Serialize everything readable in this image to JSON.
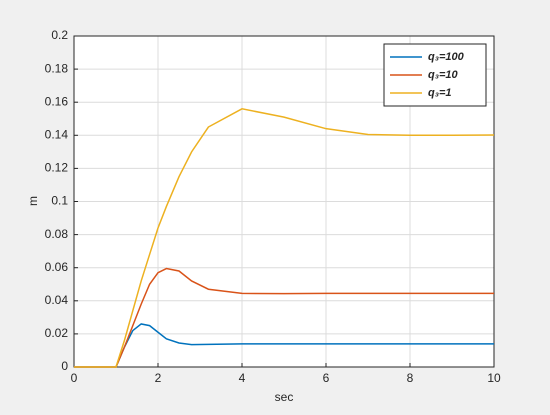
{
  "chart_data": {
    "type": "line",
    "x_label": "sec",
    "y_label": "m",
    "x": [
      0,
      1,
      1.2,
      1.4,
      1.6,
      1.8,
      2.0,
      2.2,
      2.5,
      2.8,
      3.2,
      4,
      5,
      6,
      7,
      8,
      9,
      10
    ],
    "series": [
      {
        "name": "q₃=100",
        "color": "#0072bd",
        "values": [
          0,
          0,
          0.012,
          0.022,
          0.026,
          0.025,
          0.021,
          0.017,
          0.0145,
          0.0135,
          0.0137,
          0.014,
          0.014,
          0.014,
          0.014,
          0.014,
          0.014,
          0.014
        ]
      },
      {
        "name": "q₃=10",
        "color": "#d95319",
        "values": [
          0,
          0,
          0.012,
          0.025,
          0.038,
          0.05,
          0.057,
          0.0595,
          0.058,
          0.052,
          0.047,
          0.0445,
          0.0443,
          0.0445,
          0.0445,
          0.0445,
          0.0445,
          0.0445
        ]
      },
      {
        "name": "q₃=1",
        "color": "#edb120",
        "values": [
          0,
          0,
          0.016,
          0.034,
          0.052,
          0.068,
          0.084,
          0.097,
          0.115,
          0.13,
          0.145,
          0.156,
          0.151,
          0.144,
          0.1405,
          0.14,
          0.14,
          0.1402
        ]
      }
    ],
    "xlim": [
      0,
      10
    ],
    "xticks": [
      0,
      2,
      4,
      6,
      8,
      10
    ],
    "ylim": [
      0,
      0.2
    ],
    "yticks": [
      0,
      0.02,
      0.04,
      0.06,
      0.08,
      0.1,
      0.12,
      0.14,
      0.16,
      0.18,
      0.2
    ],
    "grid": true,
    "legend": "top-right"
  }
}
